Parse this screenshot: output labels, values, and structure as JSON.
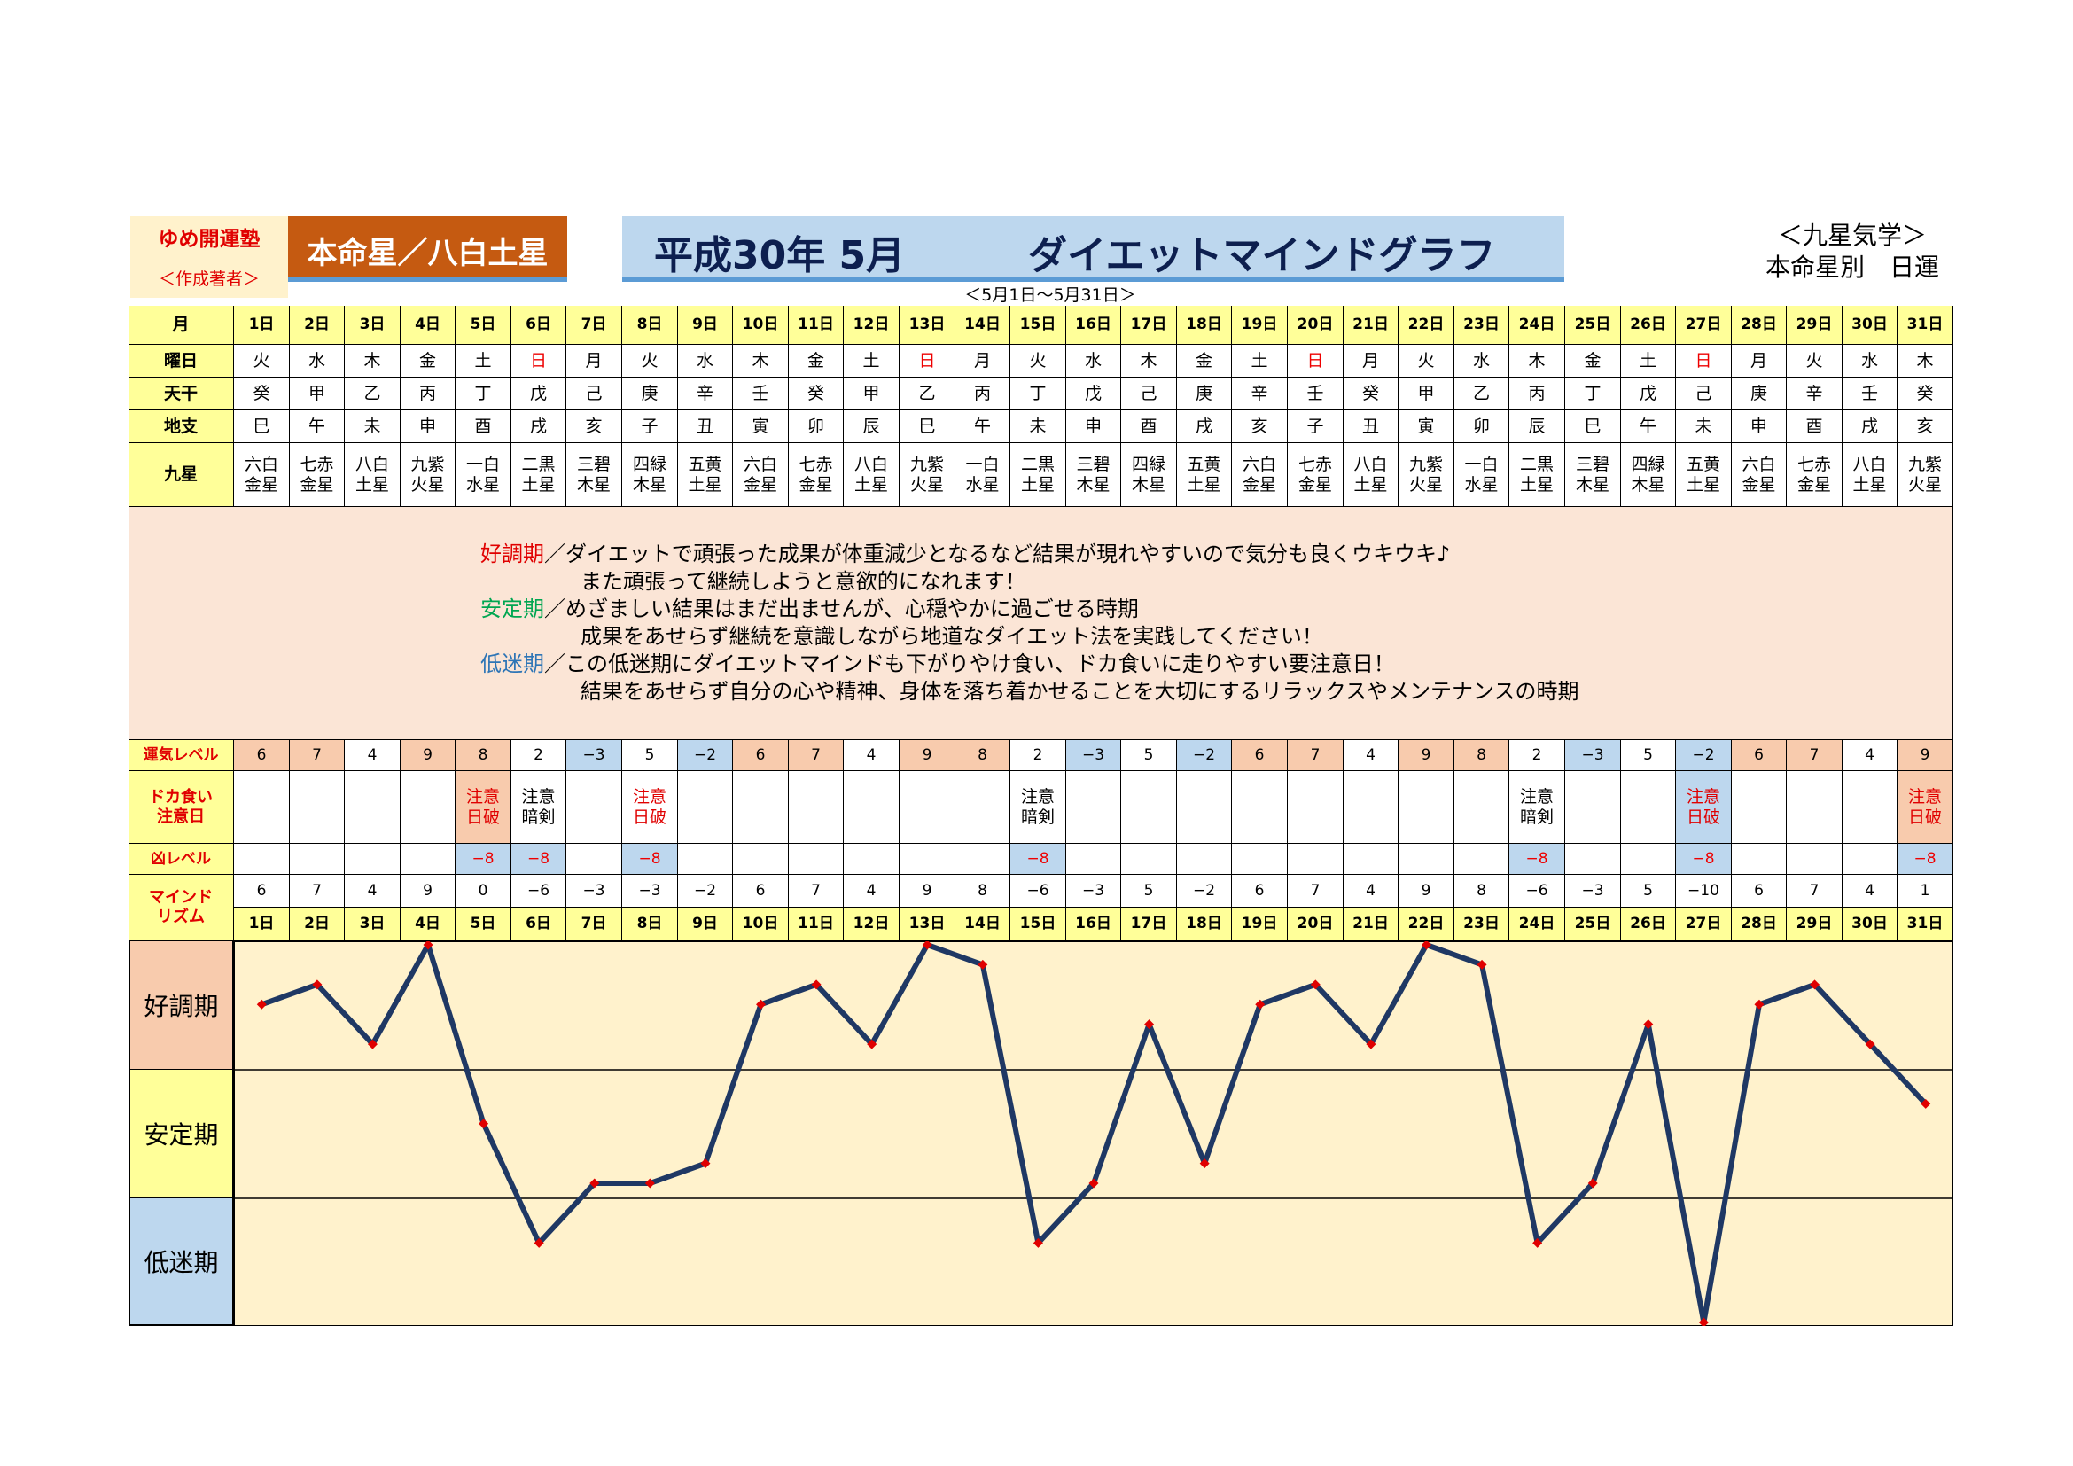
{
  "header": {
    "school_name": "ゆめ開運塾",
    "author_note": "＜作成著者＞",
    "star_badge": "本命星／八白土星",
    "title_year": "平成30年 5月",
    "title_main": "ダイエットマインドグラフ",
    "right_line1": "＜九星気学＞",
    "right_line2": "本命星別　日運",
    "date_range": "＜5月1日～5月31日＞"
  },
  "colors": {
    "accent_orange": "#c55a11",
    "good_fill": "#f8cbad",
    "low_fill": "#bdd7ee",
    "mid_fill": "#ffff99",
    "header_yellow": "#fff2cc",
    "desc_fill": "#fbe5d6",
    "chart_bg": "#fff2cc",
    "line_color": "#1f3864",
    "marker_color": "#e00000"
  },
  "row_labels": {
    "month": "月",
    "weekday": "曜日",
    "tenkan": "天干",
    "chishi": "地支",
    "kyusei": "九星",
    "fortune_level": "運気レベル",
    "caution_line1": "ドカ食い",
    "caution_line2": "注意日",
    "bad_level": "凶レベル",
    "mind_line1": "マインド",
    "mind_line2": "リズム"
  },
  "days": [
    "1日",
    "2日",
    "3日",
    "4日",
    "5日",
    "6日",
    "7日",
    "8日",
    "9日",
    "10日",
    "11日",
    "12日",
    "13日",
    "14日",
    "15日",
    "16日",
    "17日",
    "18日",
    "19日",
    "20日",
    "21日",
    "22日",
    "23日",
    "24日",
    "25日",
    "26日",
    "27日",
    "28日",
    "29日",
    "30日",
    "31日"
  ],
  "weekdays": [
    "火",
    "水",
    "木",
    "金",
    "土",
    "日",
    "月",
    "火",
    "水",
    "木",
    "金",
    "土",
    "日",
    "月",
    "火",
    "水",
    "木",
    "金",
    "土",
    "日",
    "月",
    "火",
    "水",
    "木",
    "金",
    "土",
    "日",
    "月",
    "火",
    "水",
    "木"
  ],
  "tenkan": [
    "癸",
    "甲",
    "乙",
    "丙",
    "丁",
    "戊",
    "己",
    "庚",
    "辛",
    "壬",
    "癸",
    "甲",
    "乙",
    "丙",
    "丁",
    "戊",
    "己",
    "庚",
    "辛",
    "壬",
    "癸",
    "甲",
    "乙",
    "丙",
    "丁",
    "戊",
    "己",
    "庚",
    "辛",
    "壬",
    "癸"
  ],
  "chishi": [
    "巳",
    "午",
    "未",
    "申",
    "酉",
    "戌",
    "亥",
    "子",
    "丑",
    "寅",
    "卯",
    "辰",
    "巳",
    "午",
    "未",
    "申",
    "酉",
    "戌",
    "亥",
    "子",
    "丑",
    "寅",
    "卯",
    "辰",
    "巳",
    "午",
    "未",
    "申",
    "酉",
    "戌",
    "亥"
  ],
  "kyusei_top": [
    "六白",
    "七赤",
    "八白",
    "九紫",
    "一白",
    "二黒",
    "三碧",
    "四緑",
    "五黄",
    "六白",
    "七赤",
    "八白",
    "九紫",
    "一白",
    "二黒",
    "三碧",
    "四緑",
    "五黄",
    "六白",
    "七赤",
    "八白",
    "九紫",
    "一白",
    "二黒",
    "三碧",
    "四緑",
    "五黄",
    "六白",
    "七赤",
    "八白",
    "九紫"
  ],
  "kyusei_bottom": [
    "金星",
    "金星",
    "土星",
    "火星",
    "水星",
    "土星",
    "木星",
    "木星",
    "土星",
    "金星",
    "金星",
    "土星",
    "火星",
    "水星",
    "土星",
    "木星",
    "木星",
    "土星",
    "金星",
    "金星",
    "土星",
    "火星",
    "水星",
    "土星",
    "木星",
    "木星",
    "土星",
    "金星",
    "金星",
    "土星",
    "火星"
  ],
  "description": {
    "good_label": "好調期",
    "good_line1": "／ダイエットで頑張った成果が体重減少となるなど結果が現れやすいので気分も良くウキウキ♪",
    "good_line2": "また頑張って継続しようと意欲的になれます！",
    "stable_label": "安定期",
    "stable_line1": "／めざましい結果はまだ出ませんが、心穏やかに過ごせる時期",
    "stable_line2": "成果をあせらず継続を意識しながら地道なダイエット法を実践してください！",
    "low_label": "低迷期",
    "low_line1": "／この低迷期にダイエットマインドも下がりやけ食い、ドカ食いに走りやすい要注意日！",
    "low_line2": "結果をあせらず自分の心や精神、身体を落ち着かせることを大切にするリラックスやメンテナンスの時期"
  },
  "fortune_level": [
    "6",
    "7",
    "4",
    "9",
    "8",
    "2",
    "−3",
    "5",
    "−2",
    "6",
    "7",
    "4",
    "9",
    "8",
    "2",
    "−3",
    "5",
    "−2",
    "6",
    "7",
    "4",
    "9",
    "8",
    "2",
    "−3",
    "5",
    "−2",
    "6",
    "7",
    "4",
    "9"
  ],
  "caution": {
    "5": [
      "注意",
      "日破"
    ],
    "6": [
      "注意",
      "暗剣"
    ],
    "8": [
      "注意",
      "日破"
    ],
    "15": [
      "注意",
      "暗剣"
    ],
    "24": [
      "注意",
      "暗剣"
    ],
    "27": [
      "注意",
      "日破"
    ],
    "31": [
      "注意",
      "日破"
    ]
  },
  "bad_level": {
    "5": "−8",
    "6": "−8",
    "8": "−8",
    "15": "−8",
    "24": "−8",
    "27": "−8",
    "31": "−8"
  },
  "mind_rhythm": [
    "6",
    "7",
    "4",
    "9",
    "0",
    "−6",
    "−3",
    "−3",
    "−2",
    "6",
    "7",
    "4",
    "9",
    "8",
    "−6",
    "−3",
    "5",
    "−2",
    "6",
    "7",
    "4",
    "9",
    "8",
    "−6",
    "−3",
    "5",
    "−10",
    "6",
    "7",
    "4",
    "1"
  ],
  "zones": {
    "good": "好調期",
    "stable": "安定期",
    "low": "低迷期"
  },
  "chart_data": {
    "type": "line",
    "x": [
      "1日",
      "2日",
      "3日",
      "4日",
      "5日",
      "6日",
      "7日",
      "8日",
      "9日",
      "10日",
      "11日",
      "12日",
      "13日",
      "14日",
      "15日",
      "16日",
      "17日",
      "18日",
      "19日",
      "20日",
      "21日",
      "22日",
      "23日",
      "24日",
      "25日",
      "26日",
      "27日",
      "28日",
      "29日",
      "30日",
      "31日"
    ],
    "series": [
      {
        "values": [
          6,
          7,
          4,
          9,
          0,
          -6,
          -3,
          -3,
          -2,
          6,
          7,
          4,
          9,
          8,
          -6,
          -3,
          5,
          -2,
          6,
          7,
          4,
          9,
          8,
          -6,
          -3,
          5,
          -10,
          6,
          7,
          4,
          1
        ]
      }
    ],
    "ylim": [
      -10,
      9
    ],
    "grid": false,
    "bands": [
      "好調期",
      "安定期",
      "低迷期"
    ]
  }
}
